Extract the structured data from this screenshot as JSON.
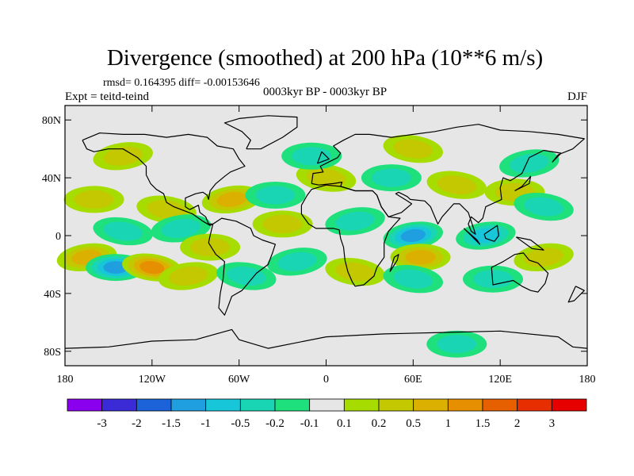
{
  "chart_data": {
    "type": "heatmap",
    "title": "Divergence (smoothed) at 200 hPa (10**6 m/s)",
    "stats_label": "rmsd= 0.164395 diff= -0.00153646",
    "left_label": "Expt = teitd-teind",
    "center_label": "0003kyr BP - 0003kyr BP",
    "season": "DJF",
    "x_ticks": [
      {
        "value": -180,
        "label": "180"
      },
      {
        "value": -120,
        "label": "120W"
      },
      {
        "value": -60,
        "label": "60W"
      },
      {
        "value": 0,
        "label": "0"
      },
      {
        "value": 60,
        "label": "60E"
      },
      {
        "value": 120,
        "label": "120E"
      },
      {
        "value": 180,
        "label": "180"
      }
    ],
    "y_ticks": [
      {
        "value": 80,
        "label": "80N"
      },
      {
        "value": 40,
        "label": "40N"
      },
      {
        "value": 0,
        "label": "0"
      },
      {
        "value": -40,
        "label": "40S"
      },
      {
        "value": -80,
        "label": "80S"
      }
    ],
    "xlim": [
      -180,
      180
    ],
    "ylim": [
      -90,
      90
    ],
    "colorbar": {
      "colors": [
        "#8a00ee",
        "#3a2bd6",
        "#1c63d9",
        "#1f9fe0",
        "#17c7d9",
        "#19d5b4",
        "#1ee07d",
        "#e6e6e6",
        "#a6dc00",
        "#c3c800",
        "#dcb000",
        "#e68f00",
        "#e66000",
        "#e62e00",
        "#e60000"
      ],
      "labels": [
        "-3",
        "-2",
        "-1.5",
        "-1",
        "-0.5",
        "-0.2",
        "-0.1",
        "0.1",
        "0.2",
        "0.5",
        "1",
        "1.5",
        "2",
        "3"
      ]
    },
    "blobs": [
      {
        "lon": -165,
        "lat": -15,
        "value": 0.8
      },
      {
        "lon": -145,
        "lat": -22,
        "value": -1.1
      },
      {
        "lon": -120,
        "lat": -22,
        "value": 1.1
      },
      {
        "lon": -95,
        "lat": -28,
        "value": 0.35
      },
      {
        "lon": -160,
        "lat": 25,
        "value": 0.35
      },
      {
        "lon": -110,
        "lat": 18,
        "value": 0.3
      },
      {
        "lon": -65,
        "lat": 25,
        "value": 0.6
      },
      {
        "lon": -35,
        "lat": 28,
        "value": -0.3
      },
      {
        "lon": -140,
        "lat": 3,
        "value": -0.3
      },
      {
        "lon": -100,
        "lat": 5,
        "value": -0.35
      },
      {
        "lon": -80,
        "lat": -8,
        "value": 0.35
      },
      {
        "lon": -55,
        "lat": -28,
        "value": -0.3
      },
      {
        "lon": -20,
        "lat": -18,
        "value": -0.3
      },
      {
        "lon": -30,
        "lat": 8,
        "value": 0.3
      },
      {
        "lon": 0,
        "lat": 40,
        "value": 0.3
      },
      {
        "lon": 20,
        "lat": 10,
        "value": -0.3
      },
      {
        "lon": 45,
        "lat": 40,
        "value": -0.3
      },
      {
        "lon": 20,
        "lat": -25,
        "value": 0.3
      },
      {
        "lon": 60,
        "lat": 0,
        "value": -1.0
      },
      {
        "lon": 65,
        "lat": -15,
        "value": 0.9
      },
      {
        "lon": 90,
        "lat": 35,
        "value": 0.4
      },
      {
        "lon": 110,
        "lat": 0,
        "value": -0.5
      },
      {
        "lon": 130,
        "lat": 30,
        "value": 0.3
      },
      {
        "lon": 150,
        "lat": 20,
        "value": -0.3
      },
      {
        "lon": 150,
        "lat": -15,
        "value": 0.35
      },
      {
        "lon": 115,
        "lat": -30,
        "value": -0.3
      },
      {
        "lon": 60,
        "lat": -30,
        "value": -0.3
      },
      {
        "lon": -140,
        "lat": 55,
        "value": 0.3
      },
      {
        "lon": -10,
        "lat": 55,
        "value": -0.3
      },
      {
        "lon": 60,
        "lat": 60,
        "value": 0.3
      },
      {
        "lon": 140,
        "lat": 50,
        "value": -0.3
      },
      {
        "lon": 90,
        "lat": -75,
        "value": -0.3
      }
    ]
  }
}
